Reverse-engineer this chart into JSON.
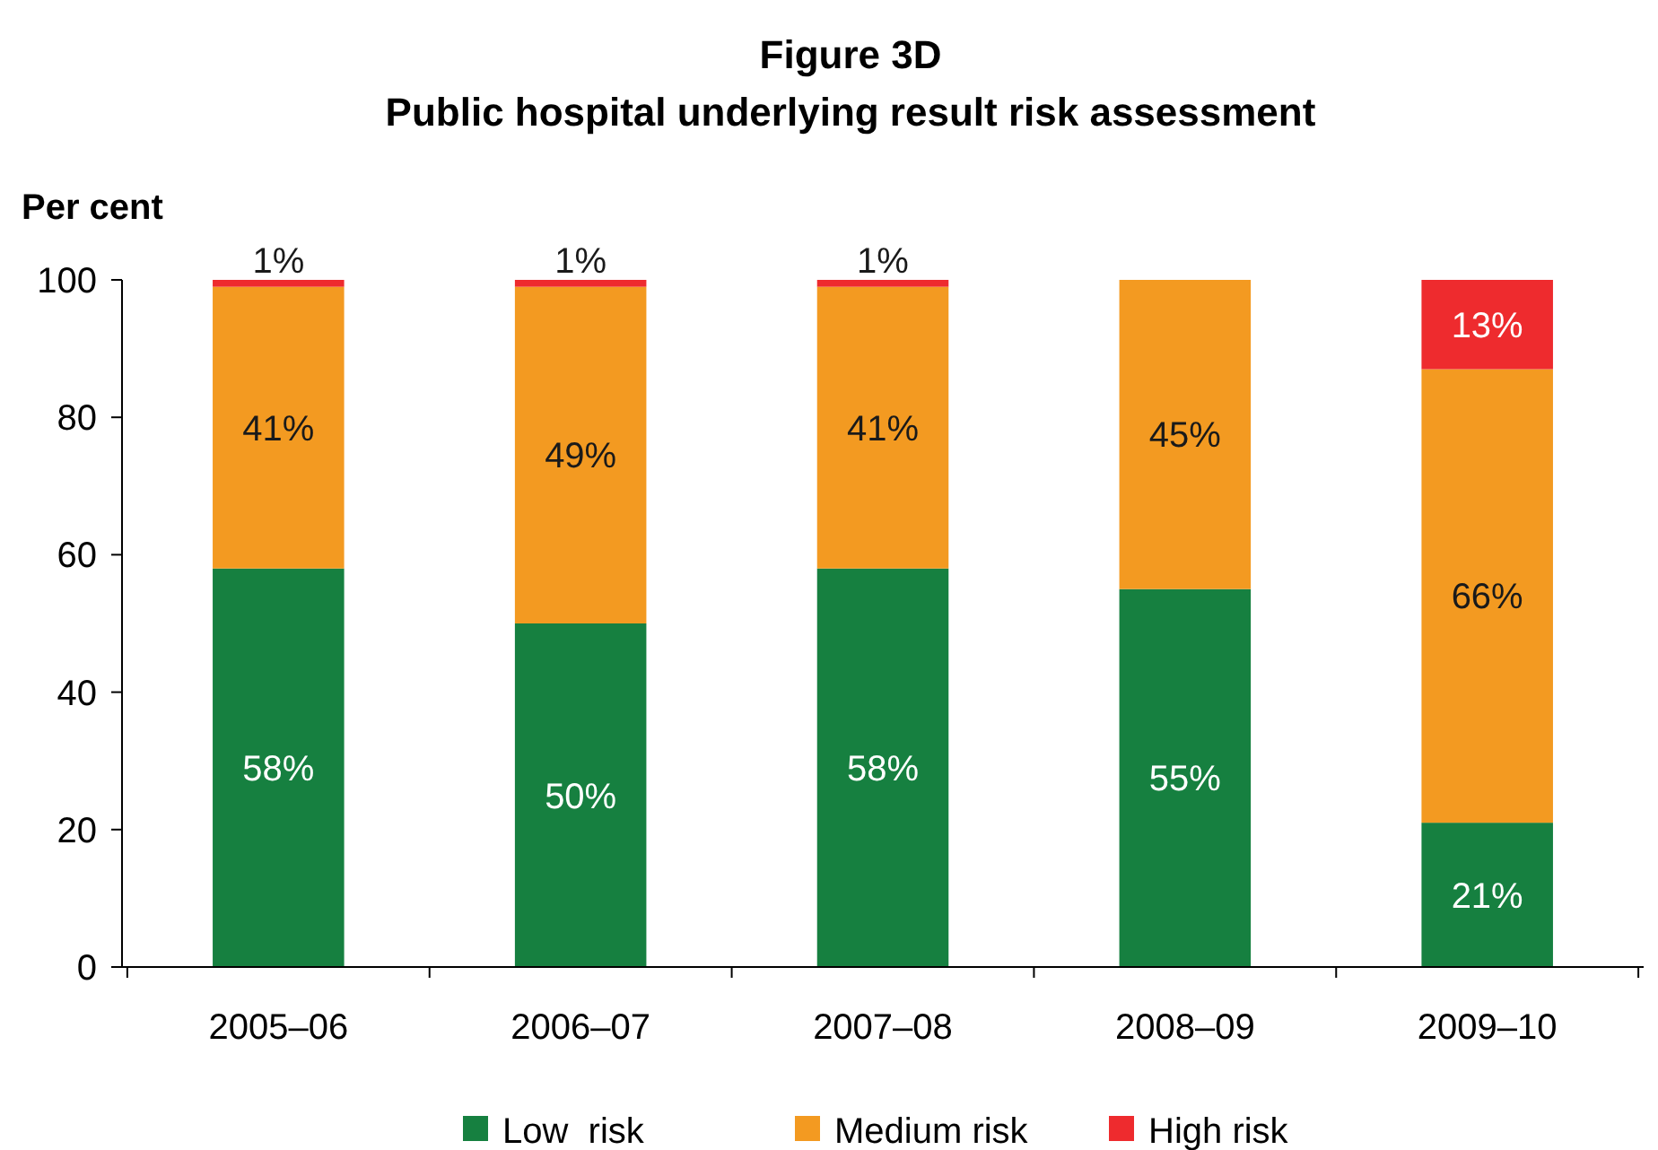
{
  "chart_data": {
    "type": "bar",
    "title": "Figure 3D",
    "subtitle": "Public hospital underlying result risk assessment",
    "ylabel": "Per cent",
    "categories": [
      "2005–06",
      "2006–07",
      "2007–08",
      "2008–09",
      "2009–10"
    ],
    "stacked": true,
    "ylim": [
      0,
      100
    ],
    "yticks": [
      0,
      20,
      40,
      60,
      80,
      100
    ],
    "legend": "bottom",
    "series": [
      {
        "name": "Low  risk",
        "color": "#168040",
        "values": [
          58,
          50,
          58,
          55,
          21
        ],
        "value_labels": [
          "58%",
          "50%",
          "58%",
          "55%",
          "21%"
        ]
      },
      {
        "name": "Medium risk",
        "color": "#f39a21",
        "values": [
          41,
          49,
          41,
          45,
          66
        ],
        "value_labels": [
          "41%",
          "49%",
          "41%",
          "45%",
          "66%"
        ]
      },
      {
        "name": "High risk",
        "color": "#ee2b2e",
        "values": [
          1,
          1,
          1,
          null,
          13
        ],
        "value_labels": [
          "1%",
          "1%",
          "1%",
          null,
          "13%"
        ]
      }
    ]
  }
}
